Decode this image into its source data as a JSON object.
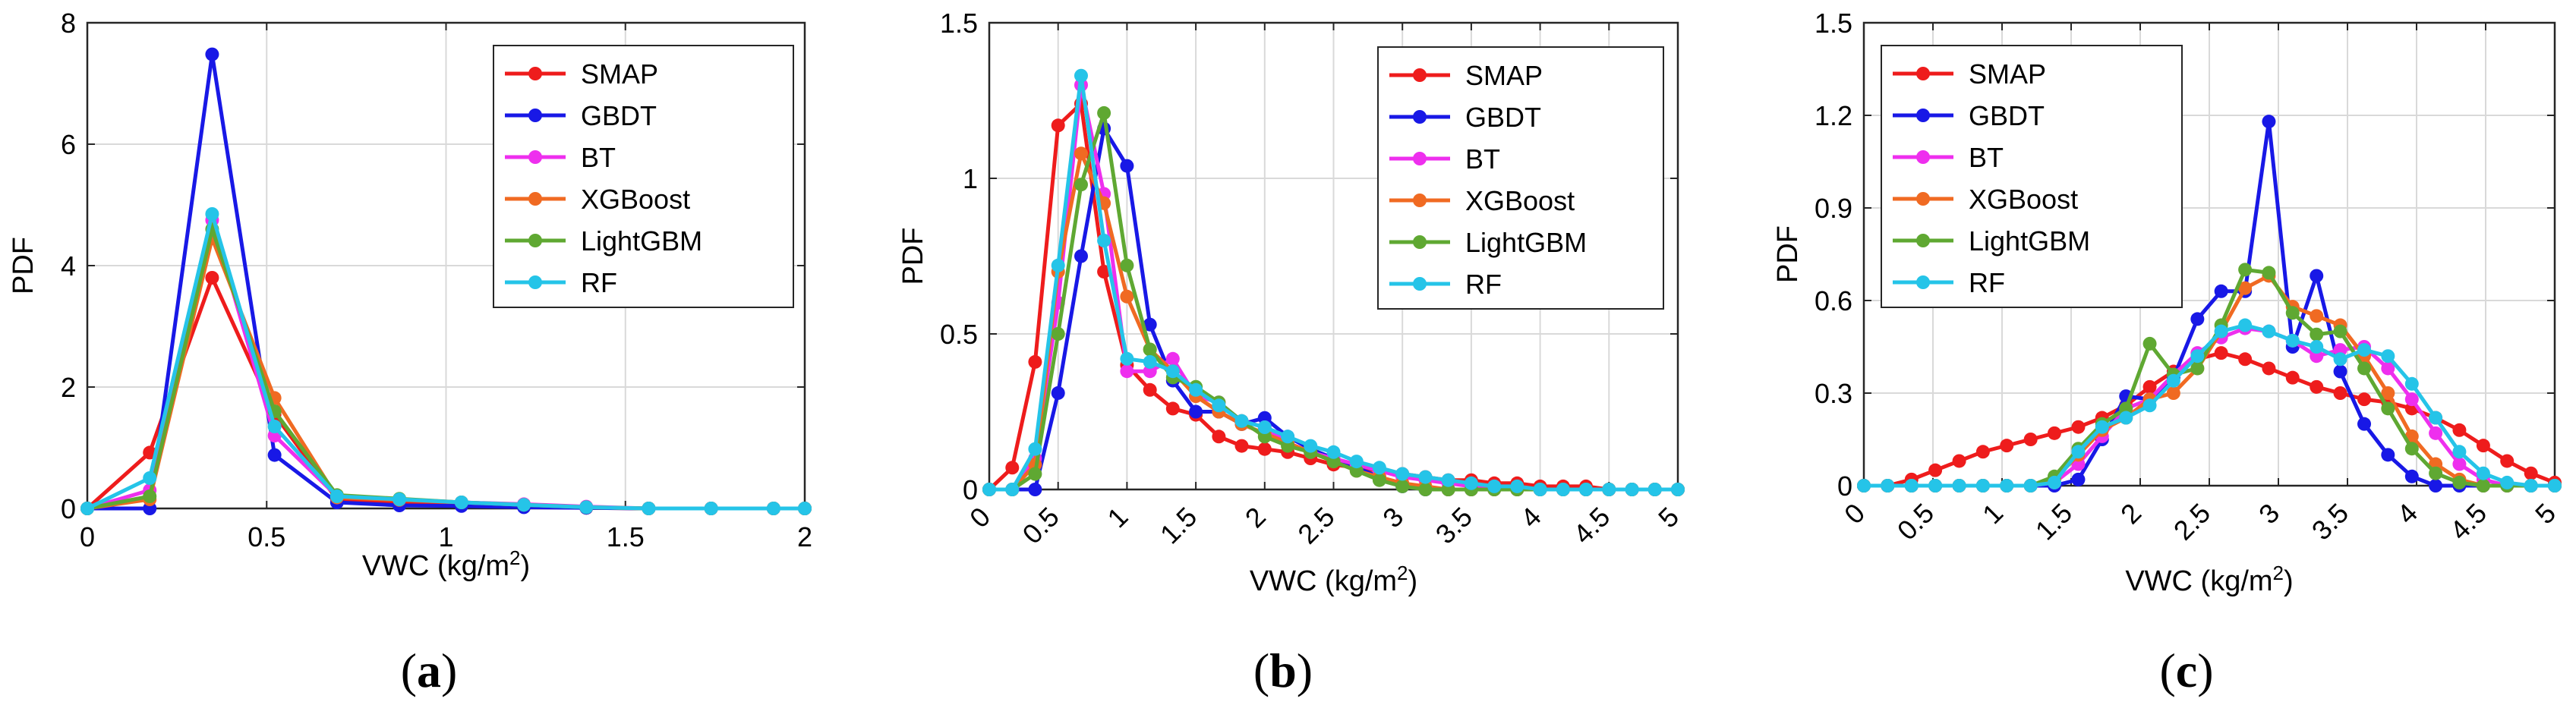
{
  "chart_data": [
    {
      "type": "line",
      "panel_label": "a",
      "xlabel": "VWC (kg/m",
      "xlabel_sup": "2",
      "xlabel_end": ")",
      "ylabel": "PDF",
      "xlim": [
        0,
        2
      ],
      "ylim": [
        0,
        8
      ],
      "xticks": [
        0,
        0.5,
        1,
        1.5,
        2
      ],
      "xtick_labels": [
        "0",
        "0.5",
        "1",
        "1.5",
        "2"
      ],
      "yticks": [
        0,
        2,
        4,
        6,
        8
      ],
      "ytick_labels": [
        "0",
        "2",
        "4",
        "6",
        "8"
      ],
      "grid": true,
      "legend_position": "top-right",
      "x": [
        0,
        0.174,
        0.348,
        0.522,
        0.696,
        0.87,
        1.043,
        1.217,
        1.391,
        1.565,
        1.739,
        1.913,
        2.0
      ],
      "series": [
        {
          "name": "SMAP",
          "values": [
            0,
            0.92,
            3.8,
            1.55,
            0.15,
            0.1,
            0.05,
            0.03,
            0.01,
            0,
            0,
            0,
            0
          ]
        },
        {
          "name": "GBDT",
          "values": [
            0,
            0,
            7.48,
            0.88,
            0.1,
            0.05,
            0.04,
            0.02,
            0.01,
            0,
            0,
            0,
            0
          ]
        },
        {
          "name": "BT",
          "values": [
            0,
            0.3,
            4.75,
            1.2,
            0.2,
            0.15,
            0.1,
            0.07,
            0.03,
            0,
            0,
            0,
            0
          ]
        },
        {
          "name": "XGBoost",
          "values": [
            0,
            0.15,
            4.45,
            1.82,
            0.18,
            0.14,
            0.1,
            0.06,
            0.02,
            0,
            0,
            0,
            0
          ]
        },
        {
          "name": "LightGBM",
          "values": [
            0,
            0.2,
            4.6,
            1.6,
            0.22,
            0.16,
            0.1,
            0.06,
            0.02,
            0,
            0,
            0,
            0
          ]
        },
        {
          "name": "RF",
          "values": [
            0,
            0.5,
            4.85,
            1.35,
            0.2,
            0.15,
            0.1,
            0.06,
            0.02,
            0,
            0,
            0,
            0
          ]
        }
      ]
    },
    {
      "type": "line",
      "panel_label": "b",
      "xlabel": "VWC (kg/m",
      "xlabel_sup": "2",
      "xlabel_end": ")",
      "ylabel": "PDF",
      "xlim": [
        0,
        5
      ],
      "ylim": [
        0,
        1.5
      ],
      "xticks": [
        0,
        0.5,
        1,
        1.5,
        2,
        2.5,
        3,
        3.5,
        4,
        4.5,
        5
      ],
      "xtick_labels": [
        "0",
        "0.5",
        "1",
        "1.5",
        "2",
        "2.5",
        "3",
        "3.5",
        "4",
        "4.5",
        "5"
      ],
      "yticks": [
        0,
        0.5,
        1,
        1.5
      ],
      "ytick_labels": [
        "0",
        "0.5",
        "1",
        "1.5"
      ],
      "grid": true,
      "legend_position": "top-right",
      "x": [
        0,
        0.167,
        0.333,
        0.5,
        0.667,
        0.833,
        1.0,
        1.167,
        1.333,
        1.5,
        1.667,
        1.833,
        2.0,
        2.167,
        2.333,
        2.5,
        2.667,
        2.833,
        3.0,
        3.167,
        3.333,
        3.5,
        3.667,
        3.833,
        4.0,
        4.167,
        4.333,
        4.5,
        4.667,
        4.833,
        5.0
      ],
      "series": [
        {
          "name": "SMAP",
          "values": [
            0,
            0.07,
            0.41,
            1.17,
            1.24,
            0.7,
            0.4,
            0.32,
            0.26,
            0.24,
            0.17,
            0.14,
            0.13,
            0.12,
            0.1,
            0.08,
            0.07,
            0.06,
            0.05,
            0.04,
            0.03,
            0.03,
            0.02,
            0.02,
            0.01,
            0.01,
            0.01,
            0,
            0,
            0,
            0
          ]
        },
        {
          "name": "GBDT",
          "values": [
            0,
            0,
            0,
            0.31,
            0.75,
            1.16,
            1.04,
            0.53,
            0.35,
            0.25,
            0.25,
            0.21,
            0.23,
            0.17,
            0.13,
            0.1,
            0.07,
            0.04,
            0.01,
            0,
            0,
            0,
            0,
            0,
            0,
            0,
            0,
            0,
            0,
            0,
            0
          ]
        },
        {
          "name": "BT",
          "values": [
            0,
            0,
            0.1,
            0.6,
            1.3,
            0.95,
            0.38,
            0.38,
            0.42,
            0.3,
            0.28,
            0.22,
            0.2,
            0.15,
            0.12,
            0.1,
            0.08,
            0.06,
            0.04,
            0.03,
            0.02,
            0.01,
            0.01,
            0,
            0,
            0,
            0,
            0,
            0,
            0,
            0
          ]
        },
        {
          "name": "XGBoost",
          "values": [
            0,
            0,
            0.08,
            0.7,
            1.08,
            0.92,
            0.62,
            0.45,
            0.38,
            0.3,
            0.25,
            0.21,
            0.18,
            0.15,
            0.12,
            0.09,
            0.06,
            0.04,
            0.02,
            0.01,
            0,
            0,
            0,
            0,
            0,
            0,
            0,
            0,
            0,
            0,
            0
          ]
        },
        {
          "name": "LightGBM",
          "values": [
            0,
            0,
            0.05,
            0.5,
            0.98,
            1.21,
            0.72,
            0.45,
            0.36,
            0.33,
            0.28,
            0.22,
            0.17,
            0.14,
            0.12,
            0.09,
            0.06,
            0.03,
            0.01,
            0,
            0,
            0,
            0,
            0,
            0,
            0,
            0,
            0,
            0,
            0,
            0
          ]
        },
        {
          "name": "RF",
          "values": [
            0,
            0,
            0.13,
            0.72,
            1.33,
            0.8,
            0.42,
            0.41,
            0.38,
            0.32,
            0.27,
            0.22,
            0.2,
            0.17,
            0.14,
            0.12,
            0.09,
            0.07,
            0.05,
            0.04,
            0.03,
            0.02,
            0.01,
            0.01,
            0,
            0,
            0,
            0,
            0,
            0,
            0
          ]
        }
      ]
    },
    {
      "type": "line",
      "panel_label": "c",
      "xlabel": "VWC (kg/m",
      "xlabel_sup": "2",
      "xlabel_end": ")",
      "ylabel": "PDF",
      "xlim": [
        0,
        5
      ],
      "ylim": [
        0,
        1.5
      ],
      "xticks": [
        0,
        0.5,
        1,
        1.5,
        2,
        2.5,
        3,
        3.5,
        4,
        4.5,
        5
      ],
      "xtick_labels": [
        "0",
        "0.5",
        "1",
        "1.5",
        "2",
        "2.5",
        "3",
        "3.5",
        "4",
        "4.5",
        "5"
      ],
      "yticks": [
        0,
        0.3,
        0.6,
        0.9,
        1.2,
        1.5
      ],
      "ytick_labels": [
        "0",
        "0.3",
        "0.6",
        "0.9",
        "1.2",
        "1.5"
      ],
      "grid": true,
      "legend_position": "top-left",
      "x": [
        0,
        0.172,
        0.345,
        0.517,
        0.69,
        0.862,
        1.034,
        1.207,
        1.379,
        1.552,
        1.724,
        1.897,
        2.069,
        2.241,
        2.414,
        2.586,
        2.759,
        2.931,
        3.103,
        3.276,
        3.448,
        3.621,
        3.793,
        3.966,
        4.138,
        4.31,
        4.483,
        4.655,
        4.828,
        5.0
      ],
      "series": [
        {
          "name": "SMAP",
          "values": [
            0,
            0,
            0.02,
            0.05,
            0.08,
            0.11,
            0.13,
            0.15,
            0.17,
            0.19,
            0.22,
            0.26,
            0.32,
            0.37,
            0.41,
            0.43,
            0.41,
            0.38,
            0.35,
            0.32,
            0.3,
            0.28,
            0.27,
            0.25,
            0.22,
            0.18,
            0.13,
            0.08,
            0.04,
            0.01
          ]
        },
        {
          "name": "GBDT",
          "values": [
            0,
            0,
            0,
            0,
            0,
            0,
            0,
            0,
            0,
            0.02,
            0.15,
            0.29,
            0.28,
            0.35,
            0.54,
            0.63,
            0.63,
            1.18,
            0.45,
            0.68,
            0.37,
            0.2,
            0.1,
            0.03,
            0,
            0,
            0,
            0,
            0,
            0
          ]
        },
        {
          "name": "BT",
          "values": [
            0,
            0,
            0,
            0,
            0,
            0,
            0,
            0,
            0.01,
            0.07,
            0.16,
            0.25,
            0.28,
            0.36,
            0.43,
            0.48,
            0.51,
            0.5,
            0.47,
            0.42,
            0.44,
            0.45,
            0.38,
            0.28,
            0.17,
            0.07,
            0.02,
            0,
            0,
            0
          ]
        },
        {
          "name": "XGBoost",
          "values": [
            0,
            0,
            0,
            0,
            0,
            0,
            0,
            0,
            0.02,
            0.1,
            0.18,
            0.22,
            0.28,
            0.3,
            0.38,
            0.5,
            0.64,
            0.68,
            0.58,
            0.55,
            0.52,
            0.42,
            0.3,
            0.16,
            0.07,
            0.02,
            0,
            0,
            0,
            0
          ]
        },
        {
          "name": "LightGBM",
          "values": [
            0,
            0,
            0,
            0,
            0,
            0,
            0,
            0,
            0.03,
            0.12,
            0.2,
            0.25,
            0.46,
            0.36,
            0.38,
            0.52,
            0.7,
            0.69,
            0.56,
            0.49,
            0.5,
            0.38,
            0.25,
            0.12,
            0.04,
            0.01,
            0,
            0,
            0,
            0
          ]
        },
        {
          "name": "RF",
          "values": [
            0,
            0,
            0,
            0,
            0,
            0,
            0,
            0,
            0.01,
            0.11,
            0.19,
            0.22,
            0.26,
            0.34,
            0.42,
            0.5,
            0.52,
            0.5,
            0.47,
            0.45,
            0.41,
            0.44,
            0.42,
            0.33,
            0.22,
            0.11,
            0.04,
            0.01,
            0,
            0
          ]
        }
      ]
    }
  ],
  "series_colors": {
    "SMAP": "#ee1c1c",
    "GBDT": "#1818e6",
    "BT": "#ee2fee",
    "XGBoost": "#f06a22",
    "LightGBM": "#5fa832",
    "RF": "#25c4e8"
  }
}
